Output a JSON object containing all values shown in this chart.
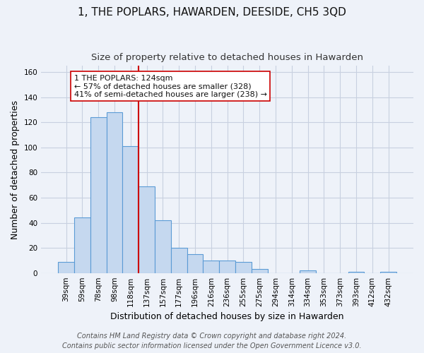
{
  "title": "1, THE POPLARS, HAWARDEN, DEESIDE, CH5 3QD",
  "subtitle": "Size of property relative to detached houses in Hawarden",
  "xlabel": "Distribution of detached houses by size in Hawarden",
  "ylabel": "Number of detached properties",
  "bar_labels": [
    "39sqm",
    "59sqm",
    "78sqm",
    "98sqm",
    "118sqm",
    "137sqm",
    "157sqm",
    "177sqm",
    "196sqm",
    "216sqm",
    "236sqm",
    "255sqm",
    "275sqm",
    "294sqm",
    "314sqm",
    "334sqm",
    "353sqm",
    "373sqm",
    "393sqm",
    "412sqm",
    "432sqm"
  ],
  "bar_values": [
    9,
    44,
    124,
    128,
    101,
    69,
    42,
    20,
    15,
    10,
    10,
    9,
    3,
    0,
    0,
    2,
    0,
    0,
    1,
    0,
    1
  ],
  "bar_color": "#c5d8ef",
  "bar_edge_color": "#5b9bd5",
  "vline_index": 5,
  "vline_color": "#cc0000",
  "ylim": [
    0,
    165
  ],
  "yticks": [
    0,
    20,
    40,
    60,
    80,
    100,
    120,
    140,
    160
  ],
  "annotation_text_line1": "1 THE POPLARS: 124sqm",
  "annotation_text_line2": "← 57% of detached houses are smaller (328)",
  "annotation_text_line3": "41% of semi-detached houses are larger (238) →",
  "footer_line1": "Contains HM Land Registry data © Crown copyright and database right 2024.",
  "footer_line2": "Contains public sector information licensed under the Open Government Licence v3.0.",
  "bg_color": "#eef2f9",
  "plot_bg_color": "#eef2f9",
  "grid_color": "#c8d0e0",
  "title_fontsize": 11,
  "subtitle_fontsize": 9.5,
  "axis_label_fontsize": 9,
  "tick_fontsize": 7.5,
  "annotation_fontsize": 8,
  "footer_fontsize": 7
}
